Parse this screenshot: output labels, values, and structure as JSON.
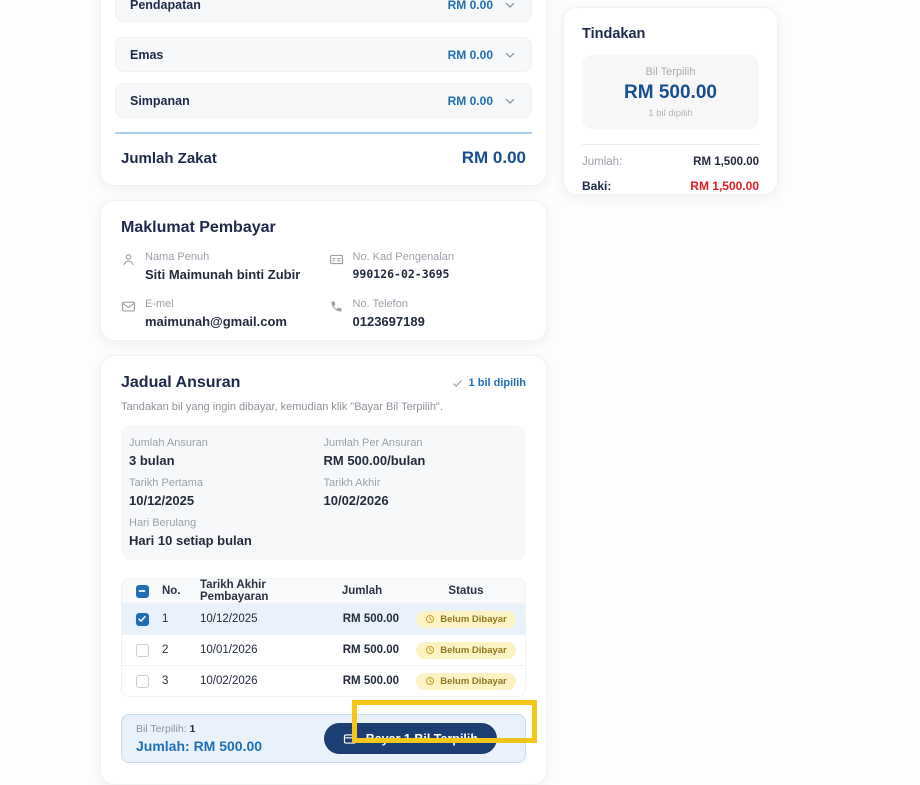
{
  "zakat_card": {
    "accordions": [
      {
        "label": "Pendapatan",
        "value": "RM 0.00"
      },
      {
        "label": "Emas",
        "value": "RM 0.00"
      },
      {
        "label": "Simpanan",
        "value": "RM 0.00"
      }
    ],
    "total_label": "Jumlah Zakat",
    "total_value": "RM 0.00"
  },
  "tindakan": {
    "title": "Tindakan",
    "selected_label": "Bil Terpilih",
    "selected_amount": "RM 500.00",
    "selected_count": "1 bil dipilih",
    "jumlah_label": "Jumlah:",
    "jumlah_value": "RM 1,500.00",
    "baki_label": "Baki:",
    "baki_value": "RM 1,500.00"
  },
  "payer": {
    "title": "Maklumat Pembayar",
    "fields": [
      {
        "icon": "person-icon",
        "label": "Nama Penuh",
        "value": "Siti Maimunah binti Zubir"
      },
      {
        "icon": "id-card-icon",
        "label": "No. Kad Pengenalan",
        "value": "990126-02-3695"
      },
      {
        "icon": "envelope-icon",
        "label": "E-mel",
        "value": "maimunah@gmail.com"
      },
      {
        "icon": "phone-icon",
        "label": "No. Telefon",
        "value": "0123697189"
      }
    ]
  },
  "jadual": {
    "title": "Jadual Ansuran",
    "selected_badge": "1 bil dipilih",
    "subtitle": "Tandakan bil yang ingin dibayar, kemudian klik \"Bayar Bil Terpilih\".",
    "summary": [
      {
        "label": "Jumlah Ansuran",
        "value": "3 bulan"
      },
      {
        "label": "Jumlah Per Ansuran",
        "value": "RM 500.00/bulan"
      },
      {
        "label": "Tarikh Pertama",
        "value": "10/12/2025"
      },
      {
        "label": "Tarikh Akhir",
        "value": "10/02/2026"
      },
      {
        "label": "Hari Berulang",
        "value": "Hari 10 setiap bulan"
      }
    ],
    "table": {
      "headers": [
        "No.",
        "Tarikh Akhir Pembayaran",
        "Jumlah",
        "Status"
      ],
      "header_checkbox_state": "indeterminate",
      "rows": [
        {
          "no": "1",
          "date": "10/12/2025",
          "amount": "RM 500.00",
          "status": "Belum Dibayar",
          "checked": true
        },
        {
          "no": "2",
          "date": "10/01/2026",
          "amount": "RM 500.00",
          "status": "Belum Dibayar",
          "checked": false
        },
        {
          "no": "3",
          "date": "10/02/2026",
          "amount": "RM 500.00",
          "status": "Belum Dibayar",
          "checked": false
        }
      ]
    },
    "footer": {
      "selected_label": "Bil Terpilih:",
      "selected_count": "1",
      "total_text": "Jumlah: RM 500.00",
      "pay_button_label": "Bayar 1 Bil Terpilih"
    }
  },
  "colors": {
    "accent_blue": "#1d6fb8",
    "navy": "#174e8f",
    "heading": "#1e2a4a",
    "red": "#e11b22",
    "badge_bg": "#fcf3c5",
    "badge_text": "#8f781f",
    "selected_row": "#e9f2fb",
    "highlight_yellow": "#f4c71a",
    "button_navy": "#1b3f72"
  }
}
